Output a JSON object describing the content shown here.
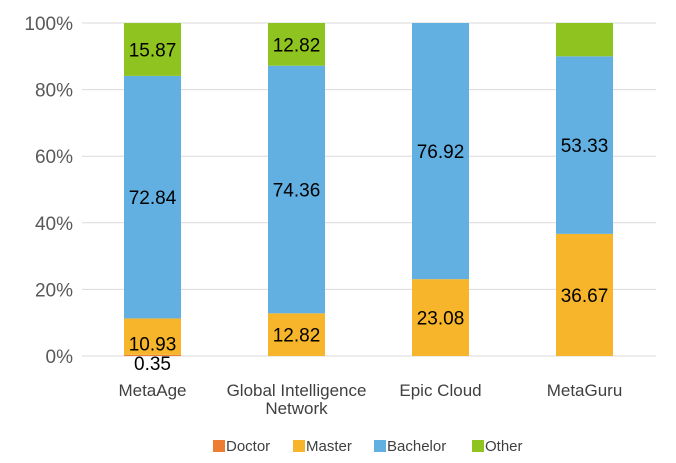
{
  "chart_data": {
    "type": "stacked_bar_100",
    "title": "",
    "xlabel": "",
    "ylabel": "",
    "ylim": [
      0,
      100
    ],
    "yticks": [
      "0%",
      "20%",
      "40%",
      "60%",
      "80%",
      "100%"
    ],
    "categories": [
      [
        "MetaAge"
      ],
      [
        "Global Intelligence",
        "Network"
      ],
      [
        "Epic Cloud"
      ],
      [
        "MetaGuru"
      ]
    ],
    "series": [
      {
        "name": "Doctor",
        "color": "#ed7d31",
        "values": [
          0.35,
          0,
          0,
          0
        ],
        "labels": [
          "0.35",
          "",
          "",
          ""
        ]
      },
      {
        "name": "Master",
        "color": "#f7b52c",
        "values": [
          10.93,
          12.82,
          23.08,
          36.67
        ],
        "labels": [
          "10.93",
          "12.82",
          "23.08",
          "36.67"
        ]
      },
      {
        "name": "Bachelor",
        "color": "#62b0e2",
        "values": [
          72.84,
          74.36,
          76.92,
          53.33
        ],
        "labels": [
          "72.84",
          "74.36",
          "76.92",
          "53.33"
        ]
      },
      {
        "name": "Other",
        "color": "#8fc31f",
        "values": [
          15.87,
          12.82,
          0,
          10.0
        ],
        "labels": [
          "15.87",
          "12.82",
          "",
          ""
        ]
      }
    ],
    "legend_position": "bottom",
    "grid": true
  }
}
